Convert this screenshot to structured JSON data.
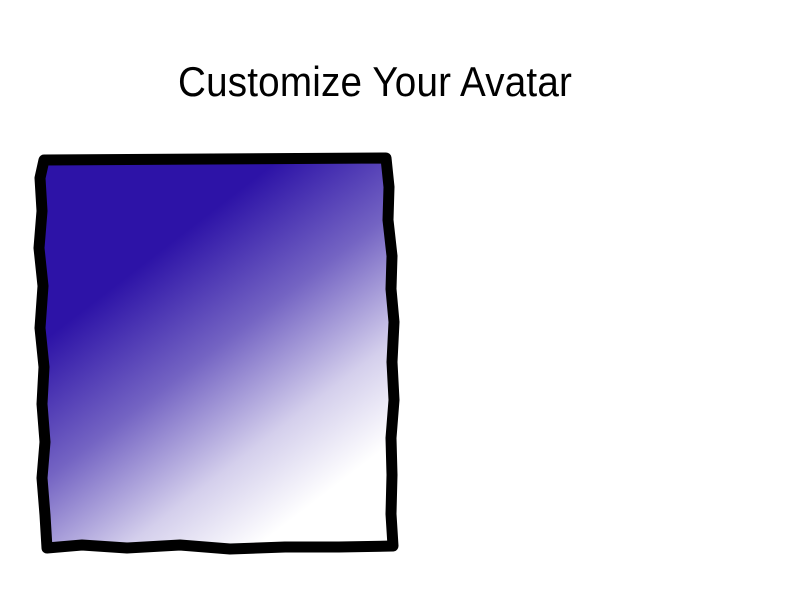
{
  "page": {
    "title": "Customize Your Avatar"
  },
  "avatar_preview": {
    "fill_top_color": "#2d13a7",
    "fill_bottom_color": "#ffffff",
    "frame_color": "#000000"
  }
}
